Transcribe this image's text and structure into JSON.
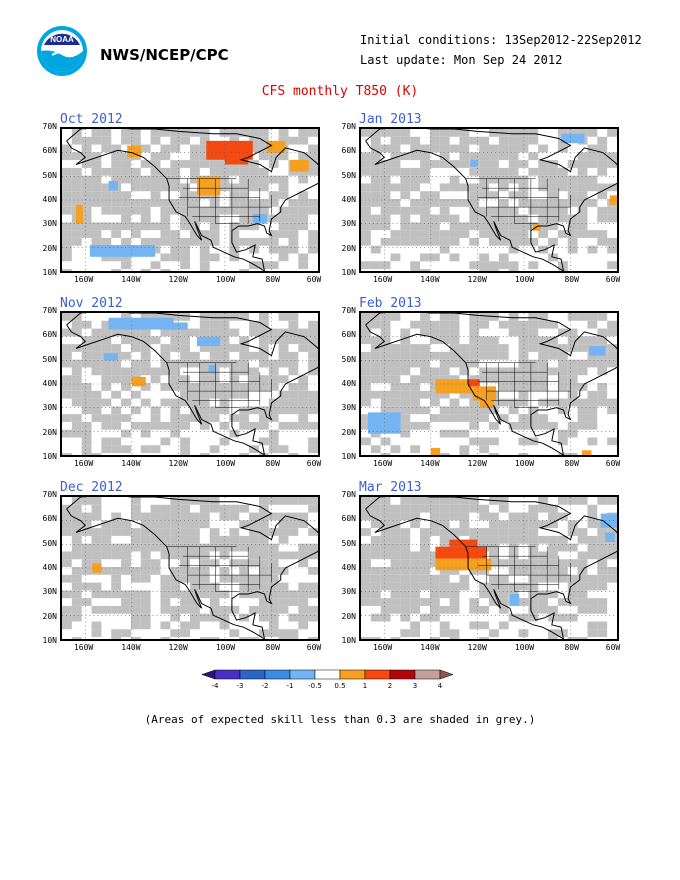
{
  "header": {
    "agency": "NWS/NCEP/CPC",
    "initial_conditions": "Initial conditions: 13Sep2012-22Sep2012",
    "last_update": "Last update: Mon Sep 24 2012",
    "title": "CFS monthly T850 (K)",
    "logo_text": "NOAA"
  },
  "axes": {
    "lat_labels": [
      "70N",
      "60N",
      "50N",
      "40N",
      "30N",
      "20N",
      "10N"
    ],
    "lon_labels": [
      "160W",
      "140W",
      "120W",
      "100W",
      "80W",
      "60W"
    ]
  },
  "panels": [
    {
      "title": "Oct 2012",
      "anomalies": [
        {
          "lon": -142,
          "lat": 63,
          "w": 6,
          "h": 5,
          "value": 1
        },
        {
          "lon": -108,
          "lat": 65,
          "w": 20,
          "h": 8,
          "value": 2
        },
        {
          "lon": -100,
          "lat": 61,
          "w": 10,
          "h": 6,
          "value": 2
        },
        {
          "lon": -82,
          "lat": 65,
          "w": 8,
          "h": 5,
          "value": 1
        },
        {
          "lon": -72,
          "lat": 57,
          "w": 8,
          "h": 5,
          "value": 1
        },
        {
          "lon": -112,
          "lat": 50,
          "w": 10,
          "h": 8,
          "value": 1
        },
        {
          "lon": -164,
          "lat": 38,
          "w": 3,
          "h": 8,
          "value": 1
        },
        {
          "lon": -150,
          "lat": 48,
          "w": 4,
          "h": 4,
          "value": -1
        },
        {
          "lon": -158,
          "lat": 21,
          "w": 28,
          "h": 5,
          "value": -1
        },
        {
          "lon": -88,
          "lat": 34,
          "w": 6,
          "h": 4,
          "value": -1
        }
      ]
    },
    {
      "title": "Jan 2013",
      "anomalies": [
        {
          "lon": -84,
          "lat": 68,
          "w": 10,
          "h": 4,
          "value": -1
        },
        {
          "lon": -123,
          "lat": 57,
          "w": 3,
          "h": 3,
          "value": -1
        },
        {
          "lon": -96,
          "lat": 30,
          "w": 3,
          "h": 3,
          "value": 1
        },
        {
          "lon": -63,
          "lat": 42,
          "w": 3,
          "h": 4,
          "value": 1
        }
      ]
    },
    {
      "title": "Nov 2012",
      "anomalies": [
        {
          "lon": -150,
          "lat": 68,
          "w": 28,
          "h": 5,
          "value": -1
        },
        {
          "lon": -126,
          "lat": 66,
          "w": 10,
          "h": 3,
          "value": -1
        },
        {
          "lon": -112,
          "lat": 60,
          "w": 10,
          "h": 4,
          "value": -1
        },
        {
          "lon": -152,
          "lat": 53,
          "w": 6,
          "h": 3,
          "value": -1
        },
        {
          "lon": -107,
          "lat": 48,
          "w": 3,
          "h": 3,
          "value": -1
        },
        {
          "lon": -140,
          "lat": 43,
          "w": 6,
          "h": 4,
          "value": 1
        }
      ]
    },
    {
      "title": "Feb 2013",
      "anomalies": [
        {
          "lon": -138,
          "lat": 42,
          "w": 16,
          "h": 6,
          "value": 1
        },
        {
          "lon": -122,
          "lat": 39,
          "w": 10,
          "h": 6,
          "value": 1
        },
        {
          "lon": -119,
          "lat": 34,
          "w": 6,
          "h": 4,
          "value": 1
        },
        {
          "lon": -124,
          "lat": 42,
          "w": 5,
          "h": 3,
          "value": 2
        },
        {
          "lon": -140,
          "lat": 13,
          "w": 4,
          "h": 3,
          "value": 1
        },
        {
          "lon": -167,
          "lat": 28,
          "w": 14,
          "h": 9,
          "value": -1
        },
        {
          "lon": -72,
          "lat": 56,
          "w": 7,
          "h": 4,
          "value": -1
        },
        {
          "lon": -75,
          "lat": 12,
          "w": 4,
          "h": 2,
          "value": 1
        }
      ]
    },
    {
      "title": "Dec 2012",
      "anomalies": [
        {
          "lon": -157,
          "lat": 42,
          "w": 4,
          "h": 4,
          "value": 1
        }
      ]
    },
    {
      "title": "Mar 2013",
      "anomalies": [
        {
          "lon": -138,
          "lat": 49,
          "w": 22,
          "h": 5,
          "value": 2
        },
        {
          "lon": -132,
          "lat": 52,
          "w": 12,
          "h": 3,
          "value": 2
        },
        {
          "lon": -138,
          "lat": 44,
          "w": 24,
          "h": 5,
          "value": 1
        },
        {
          "lon": -106,
          "lat": 29,
          "w": 4,
          "h": 5,
          "value": -1
        },
        {
          "lon": -67,
          "lat": 63,
          "w": 8,
          "h": 6,
          "value": -1
        },
        {
          "lon": -65,
          "lat": 55,
          "w": 4,
          "h": 4,
          "value": -1
        }
      ]
    }
  ],
  "colorbar": {
    "labels": [
      "-4",
      "-3",
      "-2",
      "-1",
      "-0.5",
      "0.5",
      "1",
      "2",
      "3",
      "4"
    ],
    "colors": [
      "#4a2fc4",
      "#2f63c6",
      "#3b8be0",
      "#74b4f2",
      "#ffffff",
      "#f5a020",
      "#f44a12",
      "#b0080a",
      "#c5a09a"
    ],
    "left_tip_color": "#2a1580",
    "right_tip_color": "#8c5a4a"
  },
  "note": "(Areas of expected skill less than 0.3 are shaded in grey.)",
  "colors": {
    "skill_grey": "#c0c0c0",
    "land_ocean": "#ffffff",
    "title_blue": "#3a5fcd",
    "title_red": "#e00000"
  }
}
